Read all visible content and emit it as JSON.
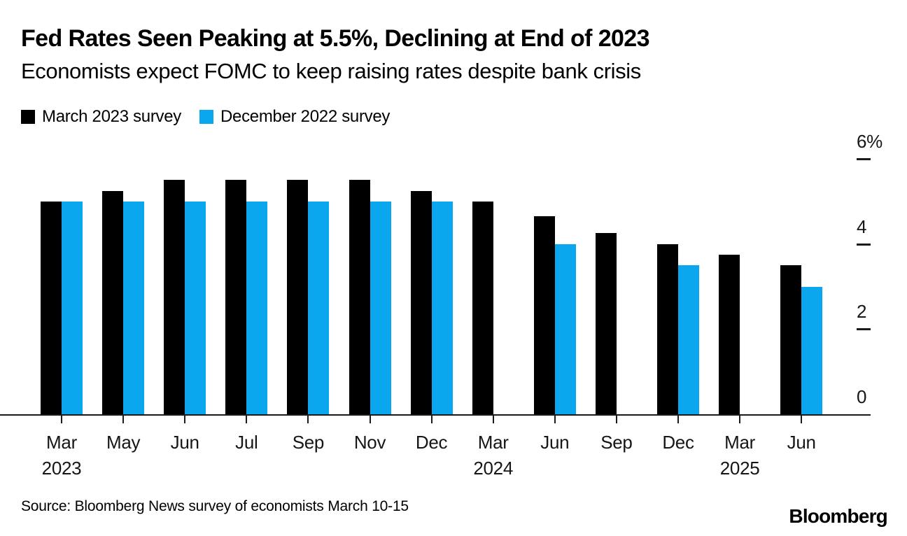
{
  "header": {
    "title": "Fed Rates Seen Peaking at 5.5%, Declining at End of 2023",
    "subtitle": "Economists expect FOMC to keep raising rates despite bank crisis"
  },
  "chart_data": {
    "type": "bar",
    "title": "Fed Rates Seen Peaking at 5.5%, Declining at End of 2023",
    "subtitle": "Economists expect FOMC to keep raising rates despite bank crisis",
    "unit": "%",
    "grid": false,
    "legend_position": "top-left",
    "y_axis": {
      "position": "right",
      "range": [
        0,
        6
      ],
      "ticks": [
        {
          "label": "6%",
          "value": 6
        },
        {
          "label": "4",
          "value": 4
        },
        {
          "label": "2",
          "value": 2
        },
        {
          "label": "0",
          "value": 0
        }
      ]
    },
    "categories": [
      {
        "label": "Mar",
        "year": "2023"
      },
      {
        "label": "May"
      },
      {
        "label": "Jun"
      },
      {
        "label": "Jul"
      },
      {
        "label": "Sep"
      },
      {
        "label": "Nov"
      },
      {
        "label": "Dec"
      },
      {
        "label": "Mar",
        "year": "2024"
      },
      {
        "label": "Jun"
      },
      {
        "label": "Sep"
      },
      {
        "label": "Dec"
      },
      {
        "label": "Mar",
        "year": "2025"
      },
      {
        "label": "Jun"
      }
    ],
    "series": [
      {
        "name": "March 2023 survey",
        "color": "#000000",
        "values": [
          5.0,
          5.25,
          5.5,
          5.5,
          5.5,
          5.5,
          5.25,
          5.0,
          4.65,
          4.25,
          4.0,
          3.75,
          3.5
        ]
      },
      {
        "name": "December 2022 survey",
        "color": "#0BA7EE",
        "values": [
          5.0,
          5.0,
          5.0,
          5.0,
          5.0,
          5.0,
          5.0,
          null,
          4.0,
          null,
          3.5,
          null,
          3.0
        ]
      }
    ]
  },
  "footer": {
    "source": "Source: Bloomberg News survey of economists March 10-15",
    "brand": "Bloomberg"
  }
}
